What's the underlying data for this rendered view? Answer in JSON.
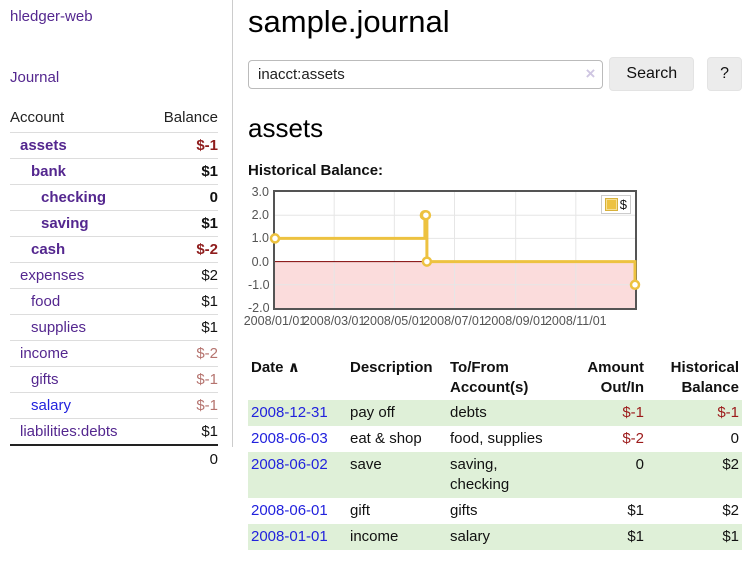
{
  "app": {
    "brand": "hledger-web",
    "nav_journal": "Journal"
  },
  "sidebar": {
    "header": {
      "account": "Account",
      "balance": "Balance"
    },
    "accounts": [
      {
        "name": "assets",
        "balance": "$-1"
      },
      {
        "name": "bank",
        "balance": "$1"
      },
      {
        "name": "checking",
        "balance": "0"
      },
      {
        "name": "saving",
        "balance": "$1"
      },
      {
        "name": "cash",
        "balance": "$-2"
      },
      {
        "name": "expenses",
        "balance": "$2"
      },
      {
        "name": "food",
        "balance": "$1"
      },
      {
        "name": "supplies",
        "balance": "$1"
      },
      {
        "name": "income",
        "balance": "$-2"
      },
      {
        "name": "gifts",
        "balance": "$-1"
      },
      {
        "name": "salary",
        "balance": "$-1"
      },
      {
        "name": "liabilities:debts",
        "balance": "$1"
      }
    ],
    "total": "0"
  },
  "main": {
    "title": "sample.journal",
    "search": {
      "value": "inacct:assets",
      "clear_icon": "×",
      "search_button": "Search",
      "help_button": "?"
    },
    "account_heading": "assets",
    "chart_title": "Historical Balance:"
  },
  "register": {
    "headers": {
      "date": "Date",
      "sort_arrow": "∧",
      "description": "Description",
      "accounts": "To/From Account(s)",
      "amount": "Amount Out/In",
      "balance": "Historical Balance"
    },
    "rows": [
      {
        "date": "2008-12-31",
        "description": "pay off",
        "accounts": "debts",
        "amount": "$-1",
        "balance": "$-1"
      },
      {
        "date": "2008-06-03",
        "description": "eat & shop",
        "accounts": "food, supplies",
        "amount": "$-2",
        "balance": "0"
      },
      {
        "date": "2008-06-02",
        "description": "save",
        "accounts": "saving, checking",
        "amount": "0",
        "balance": "$2"
      },
      {
        "date": "2008-06-01",
        "description": "gift",
        "accounts": "gifts",
        "amount": "$1",
        "balance": "$2"
      },
      {
        "date": "2008-01-01",
        "description": "income",
        "accounts": "salary",
        "amount": "$1",
        "balance": "$1"
      }
    ]
  },
  "chart_data": {
    "type": "line",
    "title": "Historical Balance",
    "style": "steps",
    "series": [
      {
        "name": "$",
        "color": "#edc240",
        "points": [
          {
            "x": "2008-01-01",
            "y": 1
          },
          {
            "x": "2008-06-01",
            "y": 2
          },
          {
            "x": "2008-06-02",
            "y": 2
          },
          {
            "x": "2008-06-03",
            "y": 0
          },
          {
            "x": "2008-12-31",
            "y": -1
          }
        ]
      }
    ],
    "x_range": [
      "2008-01-01",
      "2008-12-31"
    ],
    "ylim": [
      -2,
      3
    ],
    "y_ticks": [
      "3.0",
      "2.0",
      "1.0",
      "0.0",
      "-1.0",
      "-2.0"
    ],
    "x_ticks": [
      {
        "date": "2008-01-01",
        "label": "2008/01/01"
      },
      {
        "date": "2008-03-01",
        "label": "2008/03/01"
      },
      {
        "date": "2008-05-01",
        "label": "2008/05/01"
      },
      {
        "date": "2008-07-01",
        "label": "2008/07/01"
      },
      {
        "date": "2008-09-01",
        "label": "2008/09/01"
      },
      {
        "date": "2008-11-01",
        "label": "2008/11/01"
      }
    ],
    "legend": {
      "label": "$",
      "position": "top-right"
    },
    "grid": true,
    "negative_fill": "#fbdcdc",
    "zero_line_color": "#800000",
    "grid_color": "#e6e6e6"
  },
  "colors": {
    "accent_purple": "#54278f",
    "link_blue": "#2222dd",
    "negative_strong": "#8f1d1d",
    "negative_light": "#b5736e",
    "register_negative": "#9c1a1a",
    "row_green": "#dff0d8",
    "chart_yellow": "#edc240"
  }
}
